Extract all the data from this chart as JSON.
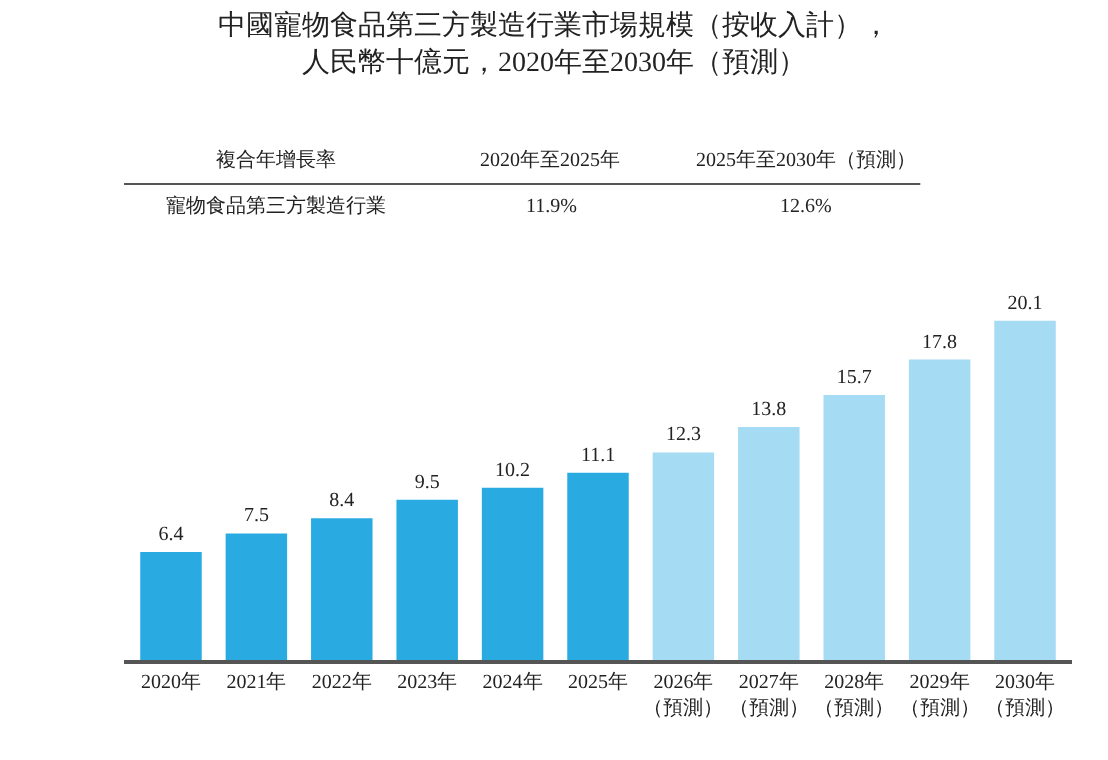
{
  "chart_data": {
    "type": "bar",
    "title": "中國寵物食品第三方製造行業市場規模（按收入計），人民幣十億元，2020年至2030年（預測）",
    "categories": [
      "2020年",
      "2021年",
      "2022年",
      "2023年",
      "2024年",
      "2025年",
      "2026年（預測）",
      "2027年（預測）",
      "2028年（預測）",
      "2029年（預測）",
      "2030年（預測）"
    ],
    "values": [
      6.4,
      7.5,
      8.4,
      9.5,
      10.2,
      11.1,
      12.3,
      13.8,
      15.7,
      17.8,
      20.1
    ],
    "colors": [
      "#29abe2",
      "#29abe2",
      "#29abe2",
      "#29abe2",
      "#29abe2",
      "#29abe2",
      "#a6dcf3",
      "#a6dcf3",
      "#a6dcf3",
      "#a6dcf3",
      "#a6dcf3"
    ],
    "data_labels": true,
    "annotations": [
      "複合年增長率",
      "2020年至2025年",
      "2025年至2030年（預測）",
      "寵物食品第三方製造行業",
      "11.9%",
      "12.6%"
    ]
  }
}
